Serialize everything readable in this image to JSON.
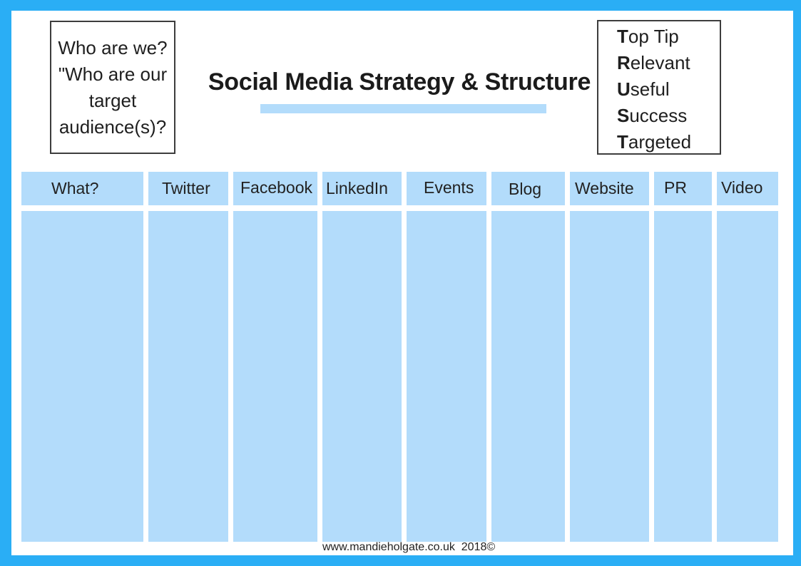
{
  "who_box": {
    "text": "Who are we?\n\"Who are our\ntarget\naudience(s)?"
  },
  "title": "Social Media Strategy & Structure",
  "top_tip": {
    "lines": [
      {
        "initial": "T",
        "rest": "op Tip"
      },
      {
        "initial": "R",
        "rest": "elevant"
      },
      {
        "initial": "U",
        "rest": "seful"
      },
      {
        "initial": "S",
        "rest": "uccess"
      },
      {
        "initial": "T",
        "rest": "argeted"
      }
    ]
  },
  "columns": [
    {
      "label": "What?"
    },
    {
      "label": "Twitter"
    },
    {
      "label": "Facebook"
    },
    {
      "label": "LinkedIn"
    },
    {
      "label": "Events"
    },
    {
      "label": "Blog"
    },
    {
      "label": "Website"
    },
    {
      "label": "PR"
    },
    {
      "label": "Video"
    }
  ],
  "footer": "www.mandieholgate.co.uk  2018©",
  "colors": {
    "border": "#2aaef5",
    "cell": "#b3dcfb",
    "box_border": "#3d3d3d"
  }
}
